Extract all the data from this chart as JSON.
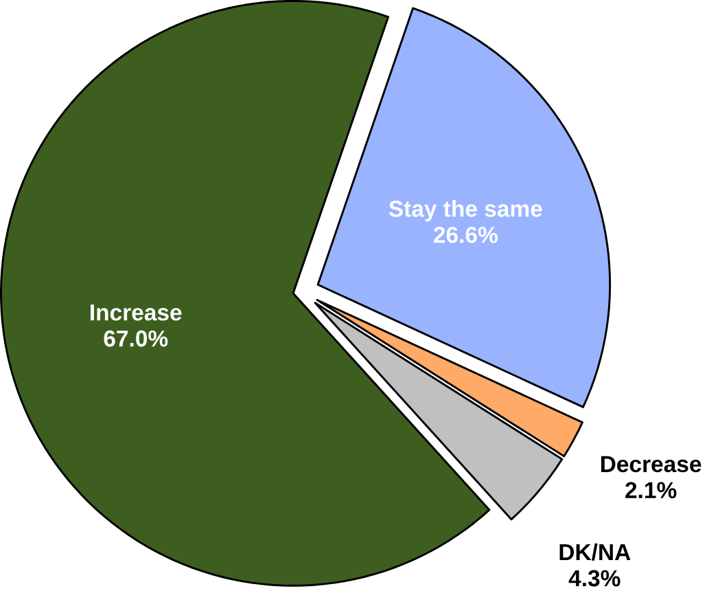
{
  "chart_data": {
    "type": "pie",
    "categories": [
      "Stay the same",
      "Decrease",
      "DK/NA",
      "Increase"
    ],
    "values": [
      26.6,
      2.1,
      4.3,
      67.0
    ],
    "value_labels": [
      "26.6%",
      "2.1%",
      "4.3%",
      "67.0%"
    ],
    "colors": [
      "#99b3ff",
      "#ffaa66",
      "#c0c0c0",
      "#3d5e1f"
    ]
  }
}
